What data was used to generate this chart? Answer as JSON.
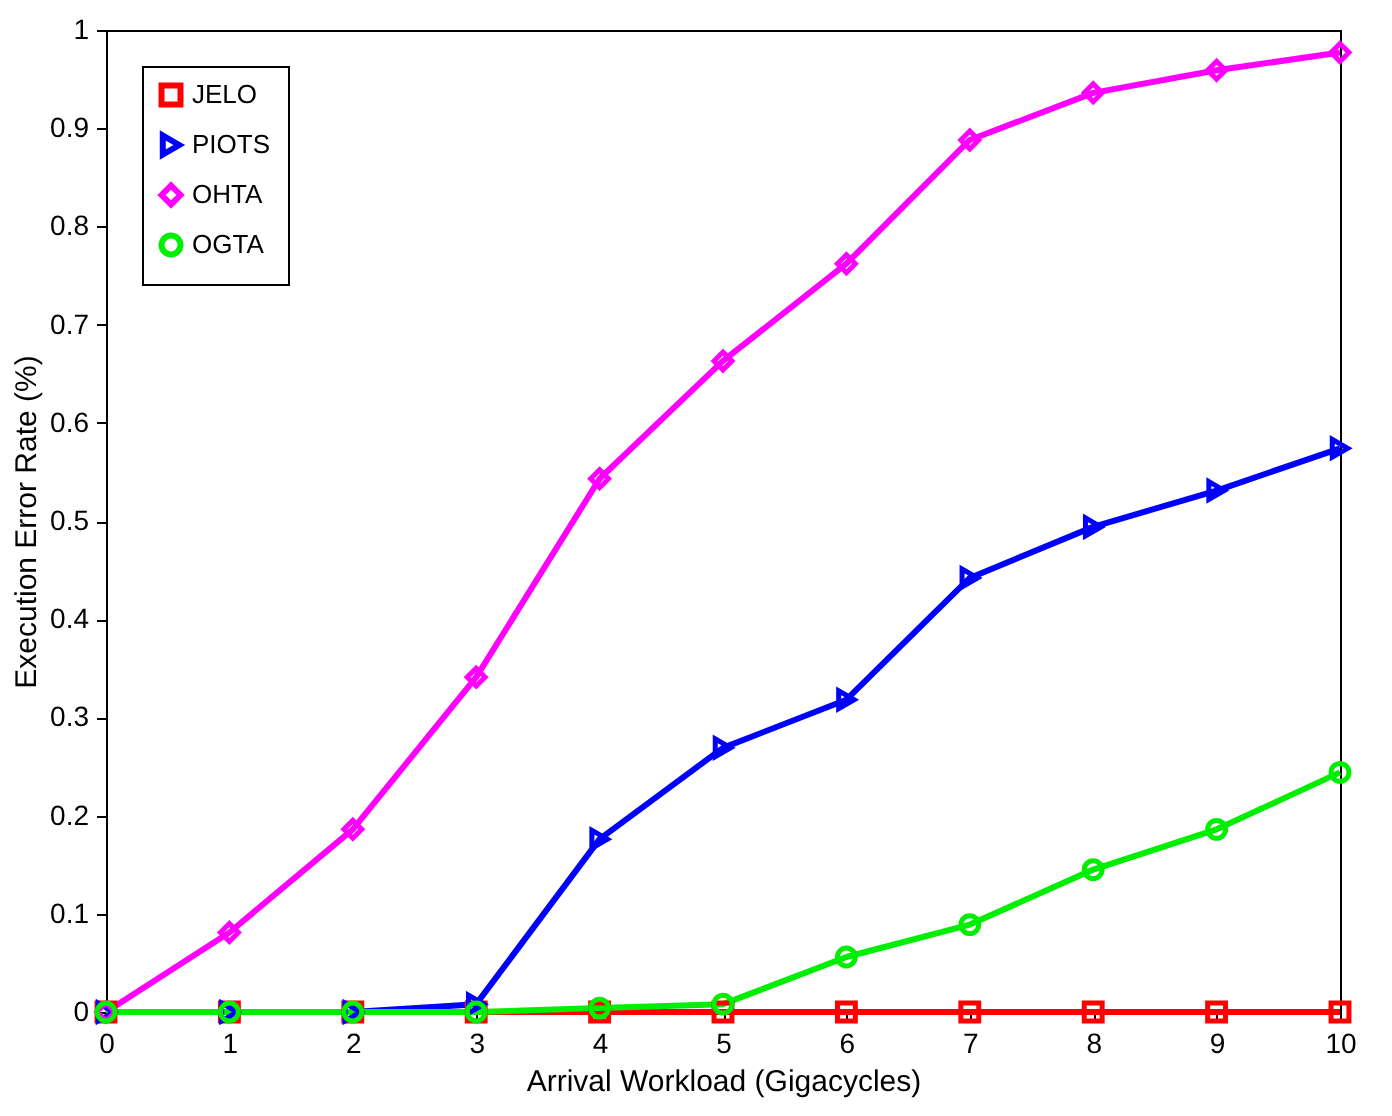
{
  "chart_data": {
    "type": "line",
    "xlabel": "Arrival Workload (Gigacycles)",
    "ylabel": "Execution Error Rate (%)",
    "x": [
      0,
      1,
      2,
      3,
      4,
      5,
      6,
      7,
      8,
      9,
      10
    ],
    "series": [
      {
        "name": "JELO",
        "color": "#ff0000",
        "marker": "square",
        "values": [
          0,
          0,
          0,
          0,
          0,
          0,
          0,
          0,
          0,
          0,
          0
        ]
      },
      {
        "name": "PIOTS",
        "color": "#0000ff",
        "marker": "triangle",
        "values": [
          0,
          0,
          0,
          0.008,
          0.176,
          0.269,
          0.318,
          0.442,
          0.494,
          0.531,
          0.574
        ]
      },
      {
        "name": "OHTA",
        "color": "#ff00ff",
        "marker": "diamond",
        "values": [
          0,
          0.081,
          0.186,
          0.341,
          0.543,
          0.663,
          0.762,
          0.888,
          0.936,
          0.959,
          0.977
        ]
      },
      {
        "name": "OGTA",
        "color": "#00ee00",
        "marker": "circle",
        "values": [
          0,
          0,
          0,
          0,
          0.004,
          0.008,
          0.056,
          0.089,
          0.145,
          0.186,
          0.244
        ]
      }
    ],
    "xlim": [
      0,
      10
    ],
    "xticks": [
      0,
      1,
      2,
      3,
      4,
      5,
      6,
      7,
      8,
      9,
      10
    ],
    "ylim": [
      0,
      1
    ],
    "yticks": [
      0,
      0.1,
      0.2,
      0.3,
      0.4,
      0.5,
      0.6,
      0.7,
      0.8,
      0.9,
      1
    ],
    "grid": false,
    "legend": "top left",
    "line_style": "solid"
  }
}
